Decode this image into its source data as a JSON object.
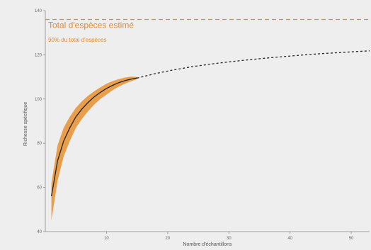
{
  "chart_data": {
    "type": "line",
    "title": "",
    "xlabel": "Nombre d'échantillons",
    "ylabel": "Richesse spécifique",
    "xlim": [
      0,
      53
    ],
    "ylim": [
      40,
      140
    ],
    "xticks": [
      10,
      20,
      30,
      40,
      50
    ],
    "yticks": [
      40,
      60,
      80,
      100,
      120,
      140
    ],
    "grid": false,
    "colors": {
      "accent": "#e28a2b",
      "band": "#e8953a",
      "curve": "#222222",
      "axis": "#888888"
    },
    "series": [
      {
        "style": "solid",
        "x": [
          1,
          2,
          3,
          4,
          5,
          6,
          7,
          8,
          9,
          10,
          11,
          12,
          13,
          14,
          15
        ],
        "y": [
          56,
          72,
          81,
          87,
          92,
          95.5,
          98.5,
          101,
          103,
          104.8,
          106.2,
          107.4,
          108.3,
          109,
          109.5
        ]
      },
      {
        "style": "dotted",
        "x": [
          15,
          18,
          21,
          24,
          27,
          30,
          33,
          36,
          39,
          42,
          45,
          48,
          51,
          53
        ],
        "y": [
          109.5,
          111.5,
          113.2,
          114.6,
          115.8,
          116.8,
          117.7,
          118.5,
          119.2,
          119.9,
          120.5,
          121,
          121.5,
          121.8
        ]
      }
    ],
    "confidence_band": {
      "x": [
        1,
        2,
        3,
        4,
        5,
        6,
        7,
        8,
        9,
        10,
        11,
        12,
        13,
        14,
        15
      ],
      "lower": [
        45,
        63,
        74,
        81,
        87,
        91,
        94.5,
        97.5,
        100,
        102,
        104,
        105.6,
        106.9,
        108,
        109
      ],
      "upper": [
        62,
        79,
        87,
        92,
        96,
        99,
        101.5,
        103.5,
        105.3,
        106.9,
        108.1,
        109,
        109.7,
        110.1,
        110
      ]
    },
    "reference_lines": [
      {
        "y": 136,
        "label": "Total d'espèces estimé"
      },
      {
        "y": 122,
        "label": "90% du total d'espèces"
      }
    ]
  }
}
